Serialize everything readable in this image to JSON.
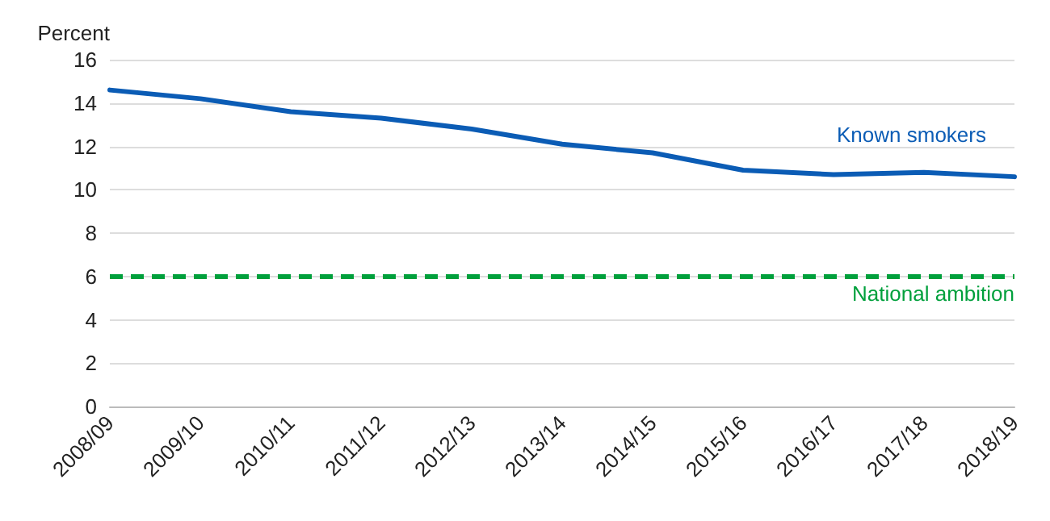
{
  "chart_data": {
    "type": "line",
    "ylabel": "Percent",
    "categories": [
      "2008/09",
      "2009/10",
      "2010/11",
      "2011/12",
      "2012/13",
      "2013/14",
      "2014/15",
      "2015/16",
      "2016/17",
      "2017/18",
      "2018/19"
    ],
    "series": [
      {
        "name": "Known smokers",
        "color": "#0b5cb5",
        "values": [
          14.6,
          14.2,
          13.6,
          13.3,
          12.8,
          12.1,
          11.7,
          10.9,
          10.7,
          10.8,
          10.6
        ]
      }
    ],
    "ref_lines": [
      {
        "axis": "y",
        "value": 6,
        "label": "National ambition",
        "color": "#00a03c",
        "line_style": "dashed"
      }
    ],
    "ylim": [
      0,
      16
    ],
    "yticks": [
      0,
      2,
      4,
      6,
      8,
      10,
      12,
      14,
      16
    ],
    "grid": "y",
    "legend": false,
    "marker": "none",
    "line_style": "solid"
  }
}
